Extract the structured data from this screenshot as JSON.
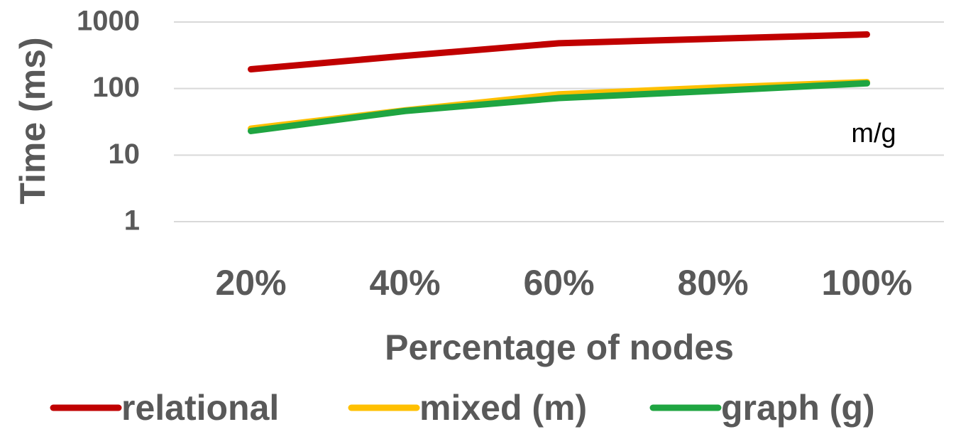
{
  "chart_data": {
    "type": "line",
    "title": "",
    "xlabel": "Percentage of nodes",
    "ylabel": "Time (ms)",
    "yscale": "log",
    "ylim": [
      1,
      1000
    ],
    "yticks": [
      "1",
      "10",
      "100",
      "1000"
    ],
    "categories": [
      "20%",
      "40%",
      "60%",
      "80%",
      "100%"
    ],
    "grid": true,
    "legend_position": "bottom",
    "series": [
      {
        "name": "relational",
        "color": "#C00000",
        "values": [
          195,
          310,
          480,
          560,
          650
        ]
      },
      {
        "name": "mixed (m)",
        "color": "#FFC000",
        "values": [
          25,
          47,
          82,
          103,
          125
        ]
      },
      {
        "name": "graph (g)",
        "color": "#1FA541",
        "values": [
          23,
          46,
          72,
          92,
          120
        ]
      }
    ],
    "annotations": [
      {
        "text": "m/g"
      }
    ]
  }
}
